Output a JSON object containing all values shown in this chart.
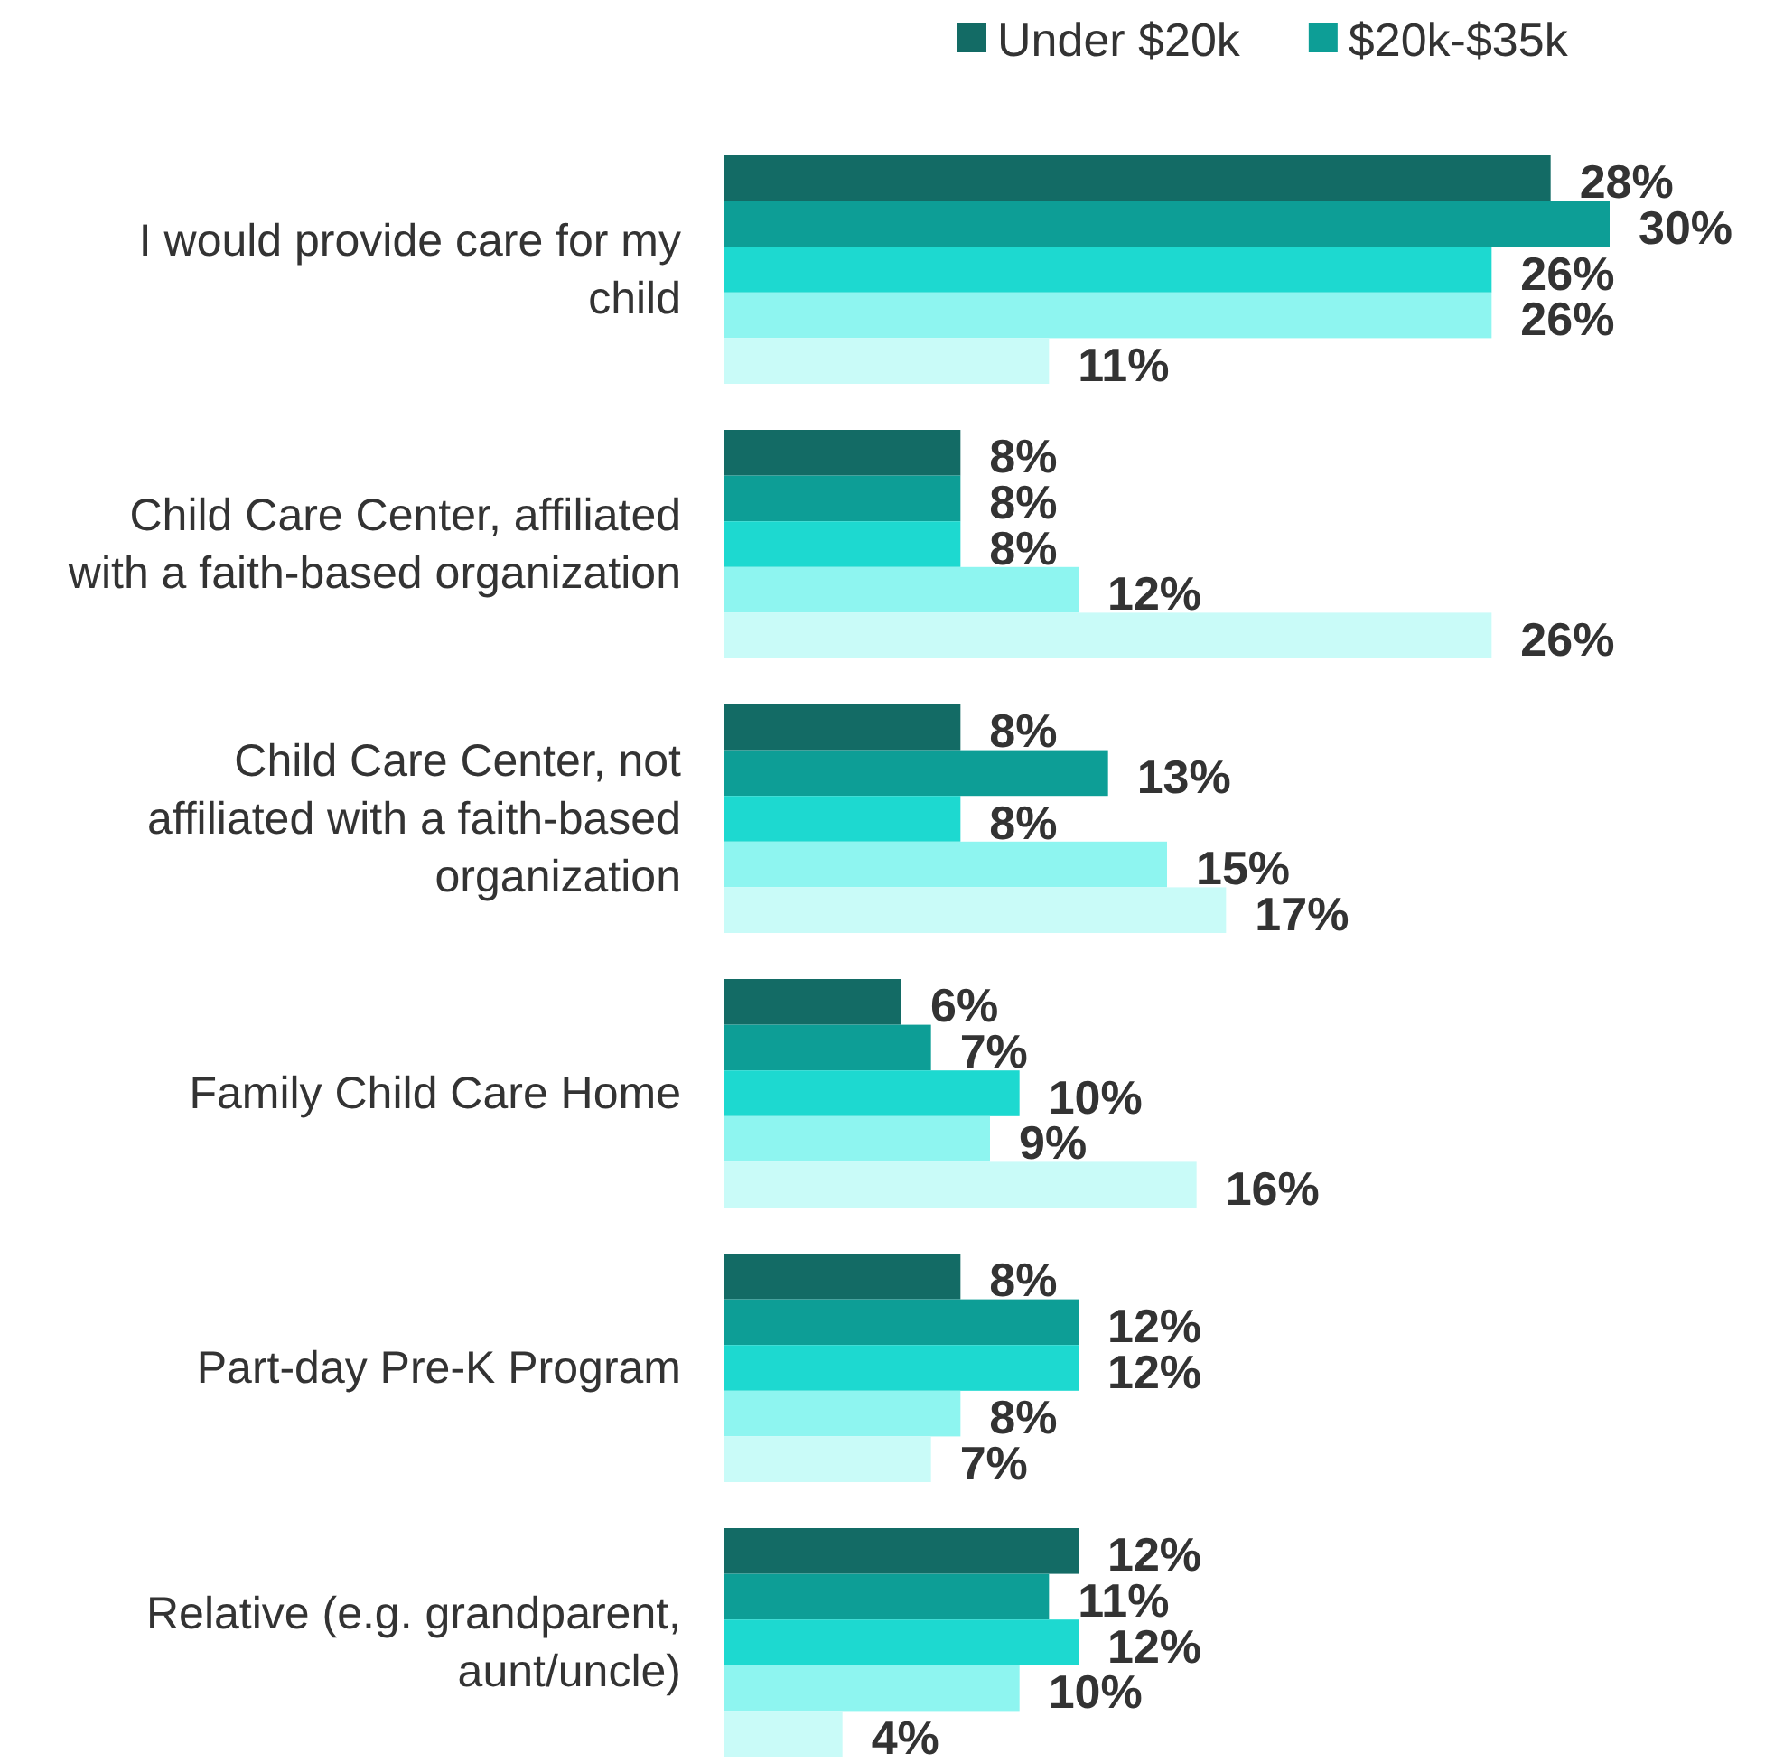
{
  "chart_data": {
    "type": "bar",
    "orientation": "horizontal",
    "legend": "top right",
    "categories": [
      "I would provide care for my child",
      "Child Care Center, affiliated with a faith-based organization",
      "Child Care Center, not affiliated with a faith-based organization",
      "Family Child Care Home",
      "Part-day Pre-K Program",
      "Relative (e.g. grandparent, aunt/uncle)"
    ],
    "series": [
      {
        "name": "Under $20k",
        "color": "#136b65",
        "values": [
          28,
          8,
          8,
          6,
          8,
          12
        ],
        "value_labels": [
          "28%",
          "8%",
          "8%",
          "6%",
          "8%",
          "12%"
        ]
      },
      {
        "name": "$20k-$35k",
        "color": "#0d9e96",
        "values": [
          30,
          8,
          13,
          7,
          12,
          11
        ],
        "value_labels": [
          "30%",
          "8%",
          "13%",
          "7%",
          "12%",
          "11%"
        ]
      },
      {
        "color": "#1dd9d0",
        "values": [
          26,
          8,
          8,
          10,
          12,
          12
        ],
        "value_labels": [
          "26%",
          "8%",
          "8%",
          "10%",
          "12%",
          "12%"
        ]
      },
      {
        "color": "#8ef5f0",
        "values": [
          26,
          12,
          15,
          9,
          8,
          10
        ],
        "value_labels": [
          "26%",
          "12%",
          "15%",
          "9%",
          "8%",
          "10%"
        ]
      },
      {
        "color": "#c9fbf8",
        "values": [
          11,
          26,
          17,
          16,
          7,
          4
        ],
        "value_labels": [
          "11%",
          "26%",
          "17%",
          "16%",
          "7%",
          "4%"
        ]
      }
    ]
  }
}
